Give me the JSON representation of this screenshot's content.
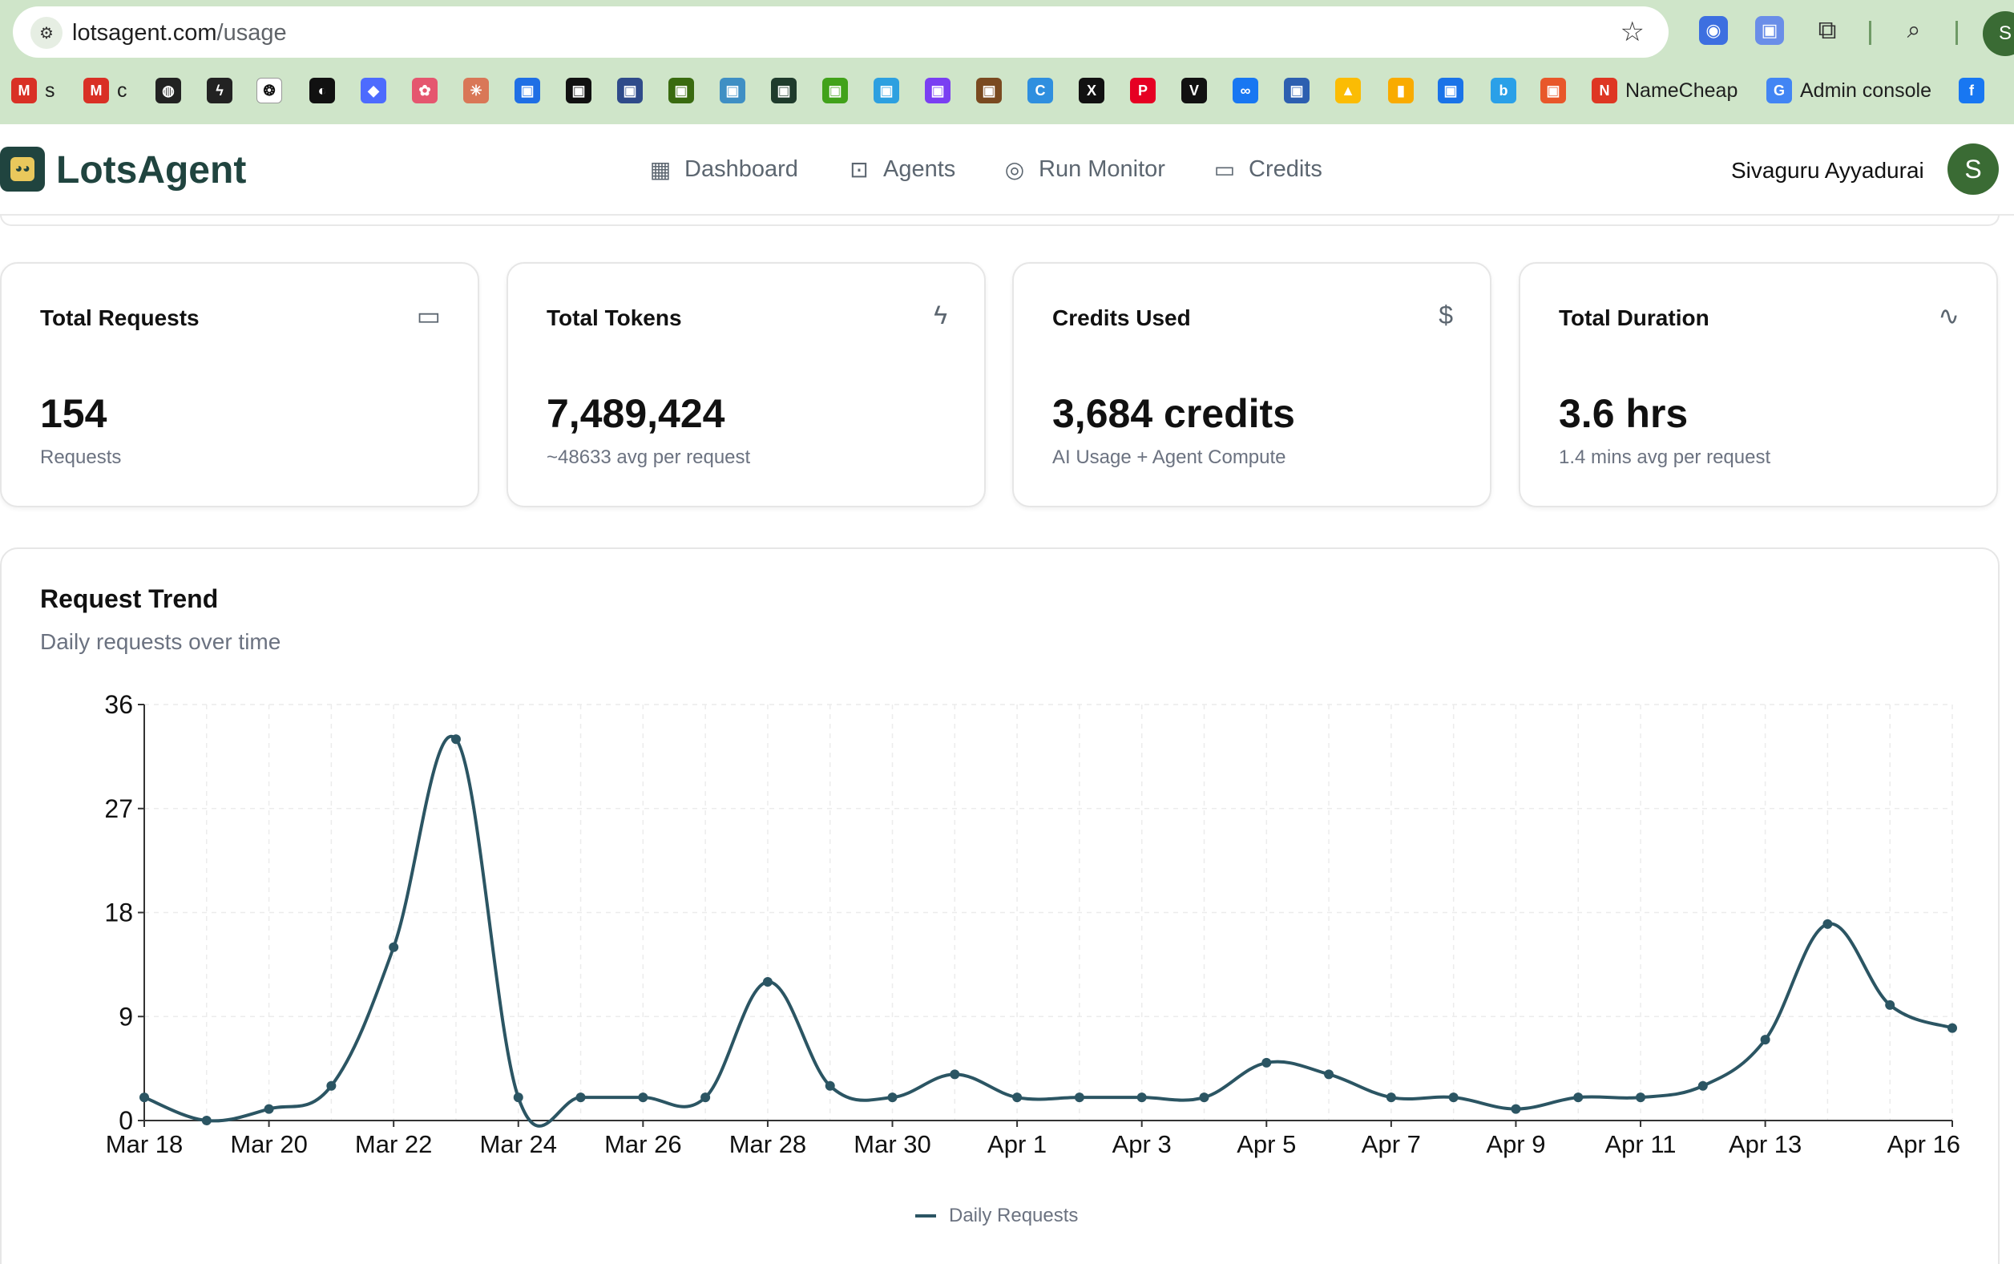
{
  "browser": {
    "url_host": "lotsagent.com",
    "url_path": "/usage",
    "profile_initial": "S",
    "bookmarks": [
      {
        "icon": "gmail-icon",
        "label": "s",
        "color": "#d93025"
      },
      {
        "icon": "gmail-icon",
        "label": "c",
        "color": "#d93025"
      },
      {
        "icon": "globe-icon",
        "label": "",
        "color": "#222222"
      },
      {
        "icon": "bolt-icon",
        "label": "",
        "color": "#222222"
      },
      {
        "icon": "openai-icon",
        "label": "",
        "color": "#ffffff"
      },
      {
        "icon": "perplexity-icon",
        "label": "",
        "color": "#111111"
      },
      {
        "icon": "deepseek-icon",
        "label": "",
        "color": "#4d6bfe"
      },
      {
        "icon": "flower-icon",
        "label": "",
        "color": "#e5566f"
      },
      {
        "icon": "claude-icon",
        "label": "",
        "color": "#d97757"
      },
      {
        "icon": "app-icon",
        "label": "",
        "color": "#1f6fe5"
      },
      {
        "icon": "app-icon",
        "label": "",
        "color": "#111111"
      },
      {
        "icon": "app-icon",
        "label": "",
        "color": "#2f4b8a"
      },
      {
        "icon": "app-icon",
        "label": "",
        "color": "#3a6b10"
      },
      {
        "icon": "app-icon",
        "label": "",
        "color": "#3f8fc4"
      },
      {
        "icon": "app-icon",
        "label": "",
        "color": "#1f3b2c"
      },
      {
        "icon": "app-icon",
        "label": "",
        "color": "#41a21a"
      },
      {
        "icon": "app-icon",
        "label": "",
        "color": "#2da0e0"
      },
      {
        "icon": "app-icon",
        "label": "",
        "color": "#7a3ff2"
      },
      {
        "icon": "app-icon",
        "label": "",
        "color": "#7a4a20"
      },
      {
        "icon": "canva-icon",
        "label": "",
        "color": "#2f8fdf"
      },
      {
        "icon": "x-icon",
        "label": "",
        "color": "#111111"
      },
      {
        "icon": "pinterest-icon",
        "label": "",
        "color": "#e60023"
      },
      {
        "icon": "vectorizer-icon",
        "label": "",
        "color": "#111111"
      },
      {
        "icon": "meta-icon",
        "label": "",
        "color": "#1877f2"
      },
      {
        "icon": "app-icon",
        "label": "",
        "color": "#2d5fb0"
      },
      {
        "icon": "ads-icon",
        "label": "",
        "color": "#fbbc04"
      },
      {
        "icon": "analytics-icon",
        "label": "",
        "color": "#f9ab00"
      },
      {
        "icon": "app-icon",
        "label": "",
        "color": "#1a73e8"
      },
      {
        "icon": "bing-icon",
        "label": "",
        "color": "#2aa0e8"
      },
      {
        "icon": "app-icon",
        "label": "",
        "color": "#e8572a"
      },
      {
        "icon": "namecheap-icon",
        "label": "NameCheap",
        "color": "#de3723"
      },
      {
        "icon": "google-icon",
        "label": "Admin console",
        "color": "#4285f4"
      },
      {
        "icon": "facebook-icon",
        "label": "",
        "color": "#1877f2"
      }
    ]
  },
  "app": {
    "brand": "LotsAgent",
    "nav": [
      {
        "label": "Dashboard",
        "icon": "dashboard-icon"
      },
      {
        "label": "Agents",
        "icon": "robot-icon"
      },
      {
        "label": "Run Monitor",
        "icon": "broadcast-icon"
      },
      {
        "label": "Credits",
        "icon": "credit-card-icon"
      }
    ],
    "user_name": "Sivaguru Ayyadurai",
    "user_initial": "S"
  },
  "stats": [
    {
      "title": "Total Requests",
      "value": "154",
      "sub": "Requests",
      "icon": "message-square-icon"
    },
    {
      "title": "Total Tokens",
      "value": "7,489,424",
      "sub": "~48633 avg per request",
      "icon": "zap-icon"
    },
    {
      "title": "Credits Used",
      "value": "3,684 credits",
      "sub": "AI Usage + Agent Compute",
      "icon": "dollar-icon"
    },
    {
      "title": "Total Duration",
      "value": "3.6 hrs",
      "sub": "1.4 mins avg per request",
      "icon": "activity-icon"
    }
  ],
  "chart": {
    "title": "Request Trend",
    "subtitle": "Daily requests over time",
    "legend": "Daily Requests"
  },
  "chart_data": {
    "type": "line",
    "title": "Request Trend",
    "subtitle": "Daily requests over time",
    "x": [
      "Mar 18",
      "Mar 19",
      "Mar 20",
      "Mar 21",
      "Mar 22",
      "Mar 23",
      "Mar 24",
      "Mar 25",
      "Mar 26",
      "Mar 27",
      "Mar 28",
      "Mar 29",
      "Mar 30",
      "Mar 31",
      "Apr 1",
      "Apr 2",
      "Apr 3",
      "Apr 4",
      "Apr 5",
      "Apr 6",
      "Apr 7",
      "Apr 8",
      "Apr 9",
      "Apr 10",
      "Apr 11",
      "Apr 12",
      "Apr 13",
      "Apr 14",
      "Apr 15",
      "Apr 16"
    ],
    "x_tick_labels": [
      "Mar 18",
      "Mar 20",
      "Mar 22",
      "Mar 24",
      "Mar 26",
      "Mar 28",
      "Mar 30",
      "Apr 1",
      "Apr 3",
      "Apr 5",
      "Apr 7",
      "Apr 9",
      "Apr 11",
      "Apr 13",
      "Apr 16"
    ],
    "series": [
      {
        "name": "Daily Requests",
        "color": "#2b5563",
        "values": [
          2,
          0,
          1,
          3,
          15,
          33,
          2,
          2,
          2,
          2,
          12,
          3,
          2,
          4,
          2,
          2,
          2,
          2,
          5,
          4,
          2,
          2,
          1,
          2,
          2,
          3,
          7,
          17,
          10,
          8
        ]
      }
    ],
    "ylim": [
      0,
      36
    ],
    "yticks": [
      0,
      9,
      18,
      27,
      36
    ],
    "grid": true,
    "legend": "bottom-center"
  }
}
